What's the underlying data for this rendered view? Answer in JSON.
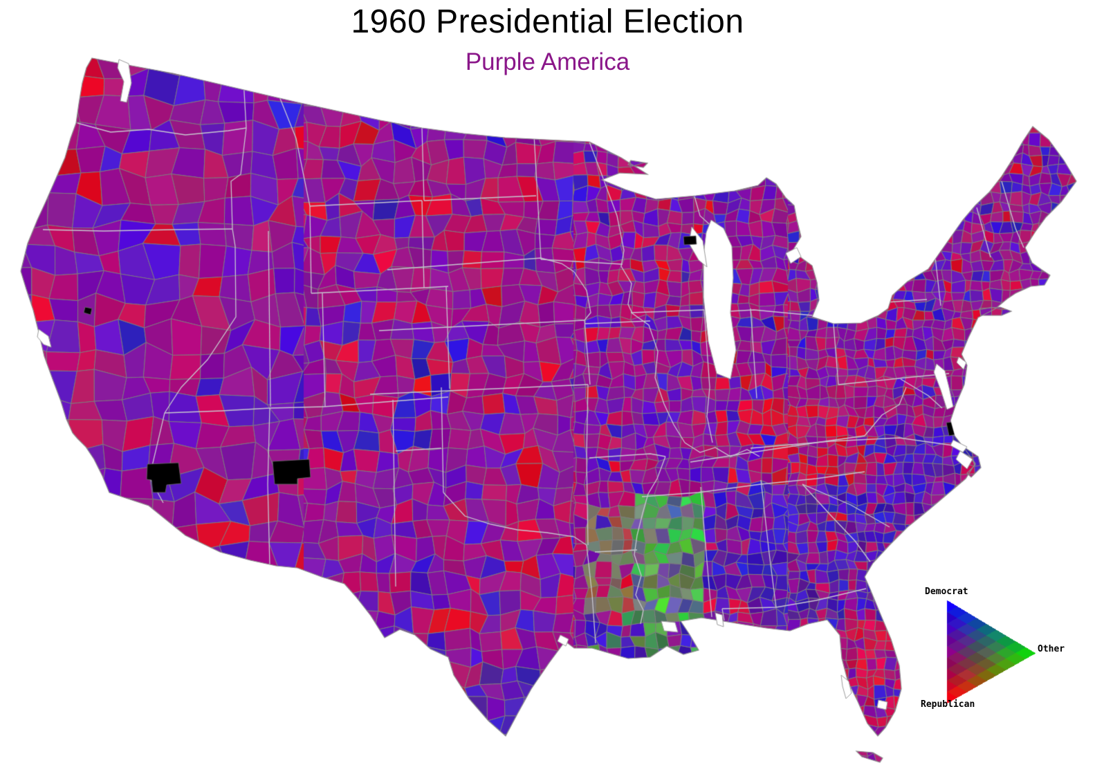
{
  "title": "1960 Presidential Election",
  "subtitle": "Purple America",
  "legend": {
    "democrat_label": "Democrat",
    "other_label": "Other",
    "republican_label": "Republican"
  },
  "palette": {
    "background": "#ffffff",
    "title_color": "#000000",
    "subtitle_color": "#8a1689",
    "county_border": "#7d7d7d",
    "state_border": "#c7c7cf",
    "coast_border": "#8a8a8a",
    "democrat_blue": "#2020d0",
    "republican_red": "#d50a18",
    "other_green": "#22c522",
    "no_data_black": "#000000"
  },
  "map": {
    "type": "choropleth",
    "region": "Contiguous United States, county level",
    "encoding": "Each county is colored by an RGB mix of its 1960 presidential vote: red = Republican, blue = Democrat, green = Other (unpledged electors / third party)",
    "notable_features": [
      "Country is dominated by purple/magenta blends of red and blue",
      "Mississippi and southern Louisiana counties show green (Other / unpledged electors)",
      "Arkansas and east Texas show olive gray-green mixes",
      "Deep South (Georgia, Alabama, coastal Carolinas) and south Texas lean strongly blue",
      "Kentucky, east Tennessee and central Florida show bright red clusters",
      "A few black counties indicate missing data (Arizona, New Mexico, Wisconsin, Virginia coast, San Francisco)"
    ]
  }
}
